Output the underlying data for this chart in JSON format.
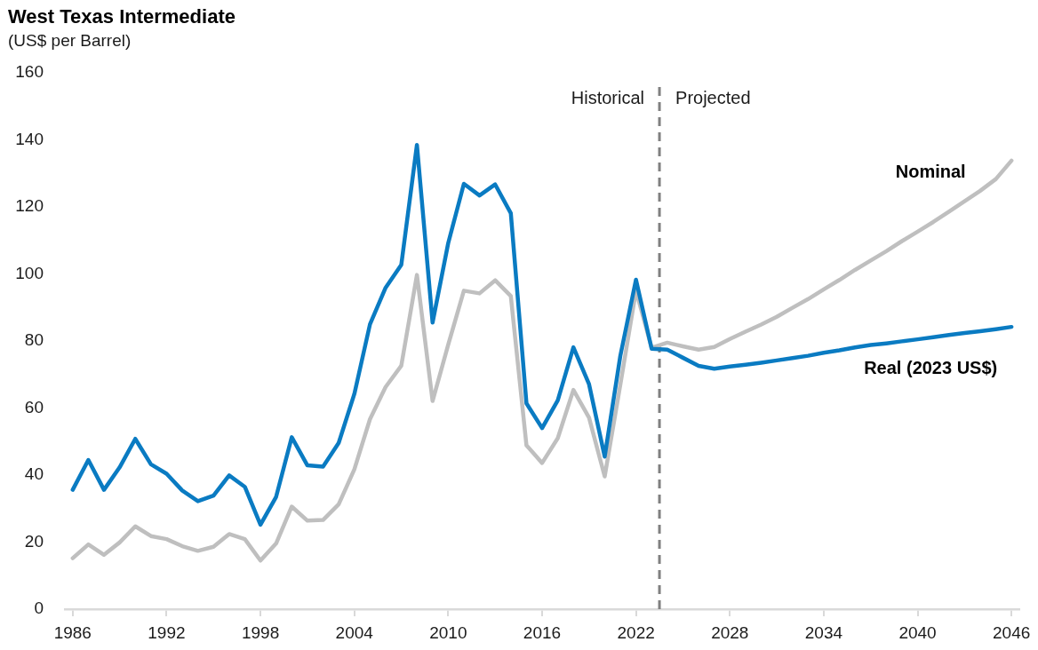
{
  "chart_data": {
    "type": "line",
    "title": "West Texas Intermediate",
    "subtitle": "(US$ per Barrel)",
    "x": [
      1986,
      1987,
      1988,
      1989,
      1990,
      1991,
      1992,
      1993,
      1994,
      1995,
      1996,
      1997,
      1998,
      1999,
      2000,
      2001,
      2002,
      2003,
      2004,
      2005,
      2006,
      2007,
      2008,
      2009,
      2010,
      2011,
      2012,
      2013,
      2014,
      2015,
      2016,
      2017,
      2018,
      2019,
      2020,
      2021,
      2022,
      2023,
      2024,
      2025,
      2026,
      2027,
      2028,
      2029,
      2030,
      2031,
      2032,
      2033,
      2034,
      2035,
      2036,
      2037,
      2038,
      2039,
      2040,
      2041,
      2042,
      2043,
      2044,
      2045,
      2046
    ],
    "series": [
      {
        "name": "Nominal",
        "color": "#bfbfbf",
        "values": [
          15.2,
          19.3,
          16.2,
          19.9,
          24.7,
          21.8,
          20.9,
          18.8,
          17.4,
          18.6,
          22.4,
          20.9,
          14.5,
          19.6,
          30.6,
          26.4,
          26.6,
          31.3,
          41.7,
          56.7,
          66.3,
          72.6,
          99.7,
          62.1,
          78.9,
          95.0,
          94.2,
          98.1,
          93.4,
          48.9,
          43.6,
          51.0,
          65.4,
          57.1,
          39.6,
          67.0,
          95.0,
          78.0,
          79.5,
          78.4,
          77.4,
          78.2,
          80.6,
          82.8,
          84.9,
          87.2,
          89.9,
          92.5,
          95.4,
          98.2,
          101.2,
          104.0,
          106.8,
          109.8,
          112.6,
          115.5,
          118.6,
          121.7,
          124.8,
          128.3,
          133.8
        ]
      },
      {
        "name": "Real (2023 US$)",
        "color": "#0a7bc2",
        "values": [
          35.6,
          44.5,
          35.6,
          42.3,
          50.8,
          43.2,
          40.4,
          35.4,
          32.2,
          33.9,
          39.9,
          36.5,
          25.2,
          33.5,
          51.3,
          42.9,
          42.5,
          49.6,
          64.2,
          85.0,
          95.9,
          102.7,
          138.5,
          85.5,
          109.2,
          126.9,
          123.4,
          126.7,
          118.1,
          61.4,
          54.0,
          62.3,
          78.1,
          67.1,
          45.5,
          75.6,
          98.3,
          77.7,
          77.4,
          75.0,
          72.6,
          71.7,
          72.4,
          72.9,
          73.5,
          74.2,
          74.9,
          75.6,
          76.5,
          77.2,
          78.1,
          78.8,
          79.3,
          79.9,
          80.5,
          81.1,
          81.8,
          82.4,
          82.9,
          83.5,
          84.2
        ]
      }
    ],
    "xlim": [
      1985.5,
      2046.5
    ],
    "xticks": [
      1986,
      1992,
      1998,
      2004,
      2010,
      2016,
      2022,
      2028,
      2034,
      2040,
      2046
    ],
    "ylim": [
      0,
      160
    ],
    "yticks": [
      0,
      20,
      40,
      60,
      80,
      100,
      120,
      140,
      160
    ],
    "ref_lines": [
      {
        "axis": "x",
        "value": 2023.5,
        "color": "#808080",
        "line_style": "dashed"
      }
    ],
    "annotations": [
      "Historical",
      "Projected"
    ],
    "grid": false,
    "legend": false,
    "line_style": "solid"
  }
}
